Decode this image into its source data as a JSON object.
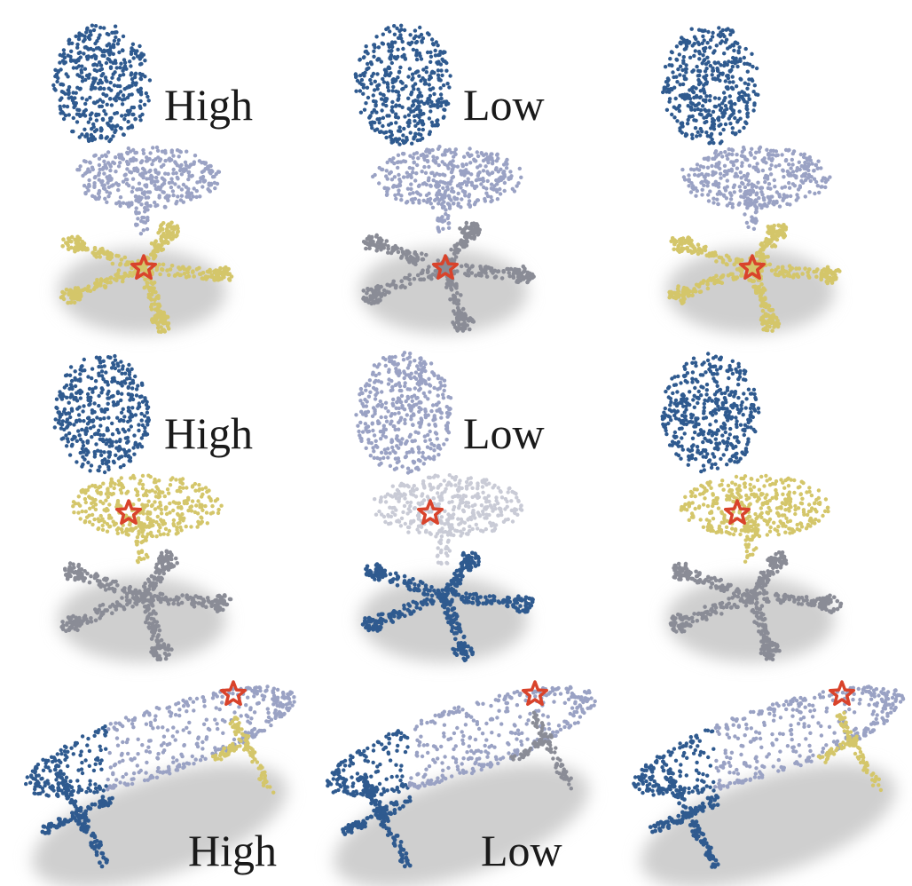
{
  "figure": {
    "rows": [
      {
        "object": "chair",
        "highlighted_part": "base",
        "panels": [
          {
            "label": "High"
          },
          {
            "label": "Low"
          },
          {
            "label": ""
          }
        ]
      },
      {
        "object": "chair",
        "highlighted_part": "seat",
        "panels": [
          {
            "label": "High"
          },
          {
            "label": "Low"
          },
          {
            "label": ""
          }
        ]
      },
      {
        "object": "table",
        "highlighted_part": "right-leg",
        "panels": [
          {
            "label": "High"
          },
          {
            "label": "Low"
          },
          {
            "label": ""
          }
        ]
      }
    ],
    "colors": {
      "blue": "#2f5a8f",
      "lavender": "#9aa2c4",
      "yellow": "#d4c66a",
      "gray": "#8a8c96",
      "star": "#d9432b",
      "shadow": "#cfcfcf"
    },
    "marker_icon": "star-icon"
  }
}
